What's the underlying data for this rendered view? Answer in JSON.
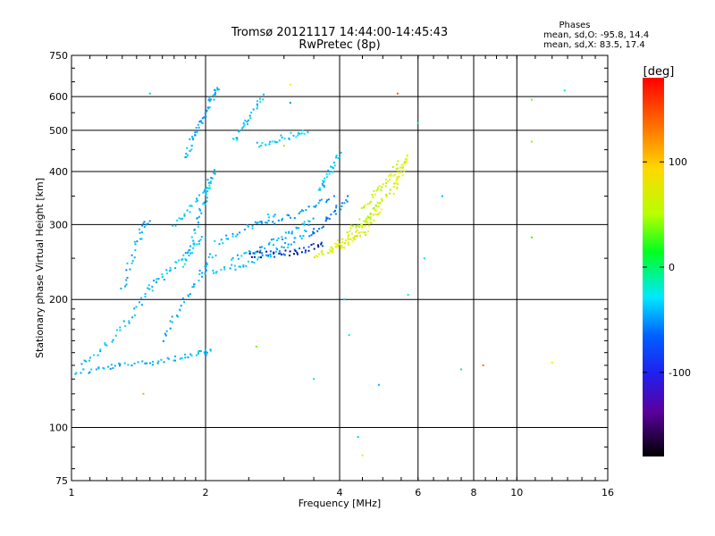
{
  "chart_data": {
    "type": "scatter",
    "title": "Tromsø 20121117 14:44:00-14:45:43",
    "subtitle": "RwPretec (8p)",
    "xlabel": "Frequency [MHz]",
    "ylabel": "Stationary phase Virtual Height [km]",
    "x_scale": "log",
    "y_scale": "log",
    "xlim": [
      1,
      16
    ],
    "ylim": [
      75,
      750
    ],
    "x_ticks": [
      1,
      2,
      4,
      6,
      8,
      10,
      16
    ],
    "y_ticks": [
      75,
      100,
      200,
      300,
      400,
      500,
      600,
      750
    ],
    "grid": true,
    "color_by": "phase",
    "stats": {
      "heading": "Phases",
      "line_o": "mean, sd,O: -95.8, 14.4",
      "line_x": "mean, sd,X:  83.5, 17.4"
    },
    "colorbar": {
      "label": "[deg]",
      "ticks": [
        100,
        0,
        -100
      ],
      "range": [
        -180,
        180
      ]
    },
    "traces": [
      {
        "x": [
          1.0,
          1.1,
          1.2,
          1.3,
          1.45,
          1.6,
          1.75,
          1.9,
          2.0,
          2.05
        ],
        "y": [
          135,
          136,
          138,
          140,
          142,
          144,
          146,
          148,
          150,
          152
        ],
        "phase": -100
      },
      {
        "x": [
          1.05,
          1.15,
          1.25,
          1.35,
          1.45,
          1.55
        ],
        "y": [
          140,
          150,
          165,
          180,
          200,
          230
        ],
        "phase": -95
      },
      {
        "x": [
          1.3,
          1.35,
          1.4,
          1.45,
          1.5
        ],
        "y": [
          210,
          240,
          270,
          295,
          310
        ],
        "phase": -105
      },
      {
        "x": [
          1.5,
          1.6,
          1.7,
          1.8,
          1.9,
          2.0
        ],
        "y": [
          210,
          225,
          240,
          255,
          270,
          285
        ],
        "phase": -95
      },
      {
        "x": [
          1.6,
          1.7,
          1.8,
          1.9,
          2.0,
          2.1
        ],
        "y": [
          160,
          180,
          200,
          220,
          240,
          260
        ],
        "phase": -100
      },
      {
        "x": [
          1.7,
          1.8,
          1.9,
          2.0,
          2.05
        ],
        "y": [
          300,
          320,
          340,
          360,
          380
        ],
        "phase": -95
      },
      {
        "x": [
          1.8,
          1.85,
          1.9,
          1.95,
          2.0,
          2.05,
          2.1,
          2.15
        ],
        "y": [
          430,
          460,
          490,
          520,
          550,
          580,
          610,
          630
        ],
        "phase": -100
      },
      {
        "x": [
          1.8,
          1.85,
          1.9,
          1.95,
          2.0,
          2.05,
          2.1
        ],
        "y": [
          240,
          260,
          290,
          320,
          350,
          380,
          410
        ],
        "phase": -95
      },
      {
        "x": [
          2.0,
          2.2,
          2.4,
          2.6,
          2.8,
          3.0,
          3.2,
          3.4
        ],
        "y": [
          230,
          235,
          240,
          248,
          256,
          266,
          278,
          292
        ],
        "phase": -95
      },
      {
        "x": [
          2.3,
          2.5,
          2.7,
          2.9,
          3.1,
          3.3,
          3.5
        ],
        "y": [
          250,
          258,
          266,
          275,
          286,
          298,
          312
        ],
        "phase": -100
      },
      {
        "x": [
          2.1,
          2.3,
          2.5,
          2.7,
          2.9
        ],
        "y": [
          270,
          282,
          294,
          306,
          320
        ],
        "phase": -95
      },
      {
        "x": [
          2.3,
          2.4,
          2.5,
          2.6,
          2.7
        ],
        "y": [
          470,
          500,
          530,
          570,
          610
        ],
        "phase": -95
      },
      {
        "x": [
          2.6,
          2.8,
          3.0,
          3.2,
          3.4
        ],
        "y": [
          460,
          470,
          480,
          490,
          500
        ],
        "phase": -90
      },
      {
        "x": [
          2.7,
          3.0,
          3.3,
          3.6,
          3.9
        ],
        "y": [
          300,
          310,
          320,
          335,
          350
        ],
        "phase": -110
      },
      {
        "x": [
          2.5,
          2.7,
          2.9,
          3.1,
          3.3,
          3.5,
          3.7
        ],
        "y": [
          255,
          255,
          256,
          258,
          261,
          265,
          270
        ],
        "phase": -140
      },
      {
        "x": [
          3.5,
          3.7,
          3.9,
          4.1,
          4.3,
          4.5,
          4.7
        ],
        "y": [
          255,
          258,
          262,
          268,
          276,
          286,
          300
        ],
        "phase": 95
      },
      {
        "x": [
          3.8,
          4.0,
          4.2,
          4.4,
          4.6,
          4.8,
          5.0
        ],
        "y": [
          265,
          272,
          280,
          290,
          302,
          316,
          332
        ],
        "phase": 100
      },
      {
        "x": [
          4.2,
          4.4,
          4.6,
          4.8,
          5.0,
          5.2
        ],
        "y": [
          290,
          300,
          312,
          326,
          342,
          360
        ],
        "phase": 85
      },
      {
        "x": [
          4.5,
          4.7,
          4.9,
          5.1,
          5.3,
          5.5
        ],
        "y": [
          330,
          345,
          362,
          380,
          400,
          420
        ],
        "phase": 90
      },
      {
        "x": [
          5.3,
          5.4,
          5.5,
          5.6,
          5.7
        ],
        "y": [
          360,
          380,
          400,
          420,
          440
        ],
        "phase": 95
      },
      {
        "x": [
          3.4,
          3.6,
          3.8,
          4.0,
          4.2
        ],
        "y": [
          280,
          295,
          312,
          330,
          350
        ],
        "phase": -120
      },
      {
        "x": [
          3.6,
          3.7,
          3.8,
          3.9,
          4.0
        ],
        "y": [
          360,
          380,
          400,
          420,
          440
        ],
        "phase": -90
      }
    ],
    "isolated_points": [
      {
        "x": 2.6,
        "y": 155,
        "phase": 60
      },
      {
        "x": 3.0,
        "y": 460,
        "phase": 70
      },
      {
        "x": 3.1,
        "y": 580,
        "phase": -110
      },
      {
        "x": 3.1,
        "y": 640,
        "phase": 105
      },
      {
        "x": 3.5,
        "y": 130,
        "phase": -30
      },
      {
        "x": 4.1,
        "y": 200,
        "phase": -95
      },
      {
        "x": 4.2,
        "y": 165,
        "phase": -60
      },
      {
        "x": 4.4,
        "y": 95,
        "phase": -90
      },
      {
        "x": 4.5,
        "y": 86,
        "phase": 95
      },
      {
        "x": 4.9,
        "y": 126,
        "phase": -100
      },
      {
        "x": 5.4,
        "y": 610,
        "phase": 160
      },
      {
        "x": 5.7,
        "y": 205,
        "phase": -60
      },
      {
        "x": 6.0,
        "y": 520,
        "phase": -30
      },
      {
        "x": 6.2,
        "y": 250,
        "phase": -80
      },
      {
        "x": 6.8,
        "y": 350,
        "phase": -100
      },
      {
        "x": 7.5,
        "y": 137,
        "phase": -40
      },
      {
        "x": 8.4,
        "y": 140,
        "phase": 150
      },
      {
        "x": 10.8,
        "y": 590,
        "phase": 60
      },
      {
        "x": 10.8,
        "y": 470,
        "phase": 70
      },
      {
        "x": 10.8,
        "y": 280,
        "phase": 40
      },
      {
        "x": 12.0,
        "y": 142,
        "phase": 100
      },
      {
        "x": 12.8,
        "y": 620,
        "phase": -40
      },
      {
        "x": 1.5,
        "y": 610,
        "phase": -95
      },
      {
        "x": 1.45,
        "y": 120,
        "phase": 130
      }
    ]
  }
}
